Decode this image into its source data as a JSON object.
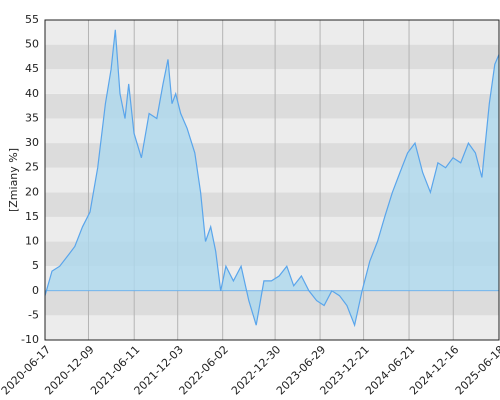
{
  "chart_data": {
    "type": "area",
    "y_label": "[Zmiany %]",
    "x": [
      "2020-06-17",
      "2020-07-15",
      "2020-08-15",
      "2020-09-15",
      "2020-10-15",
      "2020-11-15",
      "2020-12-15",
      "2021-01-15",
      "2021-02-15",
      "2021-03-10",
      "2021-03-27",
      "2021-04-15",
      "2021-05-05",
      "2021-05-20",
      "2021-06-10",
      "2021-07-10",
      "2021-08-10",
      "2021-09-10",
      "2021-10-05",
      "2021-10-25",
      "2021-11-10",
      "2021-11-25",
      "2021-12-15",
      "2022-01-10",
      "2022-02-10",
      "2022-03-05",
      "2022-03-25",
      "2022-04-15",
      "2022-05-05",
      "2022-05-25",
      "2022-06-15",
      "2022-07-15",
      "2022-08-15",
      "2022-09-15",
      "2022-10-15",
      "2022-11-15",
      "2022-12-15",
      "2023-01-15",
      "2023-02-15",
      "2023-03-15",
      "2023-04-15",
      "2023-05-15",
      "2023-06-15",
      "2023-07-15",
      "2023-08-15",
      "2023-09-15",
      "2023-10-15",
      "2023-11-15",
      "2023-12-15",
      "2024-01-15",
      "2024-02-15",
      "2024-03-15",
      "2024-04-15",
      "2024-05-15",
      "2024-06-15",
      "2024-07-15",
      "2024-08-15",
      "2024-09-15",
      "2024-10-15",
      "2024-11-15",
      "2024-12-15",
      "2025-01-15",
      "2025-02-15",
      "2025-03-15",
      "2025-04-10",
      "2025-05-10",
      "2025-06-01",
      "2025-06-18"
    ],
    "values": [
      -1,
      4,
      5,
      7,
      9,
      13,
      16,
      25,
      38,
      45,
      53,
      40,
      35,
      42,
      32,
      27,
      36,
      35,
      42,
      47,
      38,
      40,
      36,
      33,
      28,
      20,
      10,
      13,
      8,
      0,
      5,
      2,
      5,
      -2,
      -7,
      2,
      2,
      3,
      5,
      1,
      3,
      0,
      -2,
      -3,
      0,
      -1,
      -3,
      -7,
      0,
      6,
      10,
      15,
      20,
      24,
      28,
      30,
      24,
      20,
      26,
      25,
      27,
      26,
      30,
      28,
      23,
      38,
      46,
      48
    ],
    "color": "#5aa5eb",
    "fill_color": "#add8ee",
    "xlim": [
      "2020-06-17",
      "2025-06-18"
    ],
    "xticks": [
      "2020-06-17",
      "2020-12-09",
      "2021-06-11",
      "2021-12-03",
      "2022-06-02",
      "2022-12-30",
      "2023-06-29",
      "2023-12-21",
      "2024-06-21",
      "2024-12-16",
      "2025-06-18"
    ],
    "ylim": [
      -10,
      55
    ],
    "yticks": [
      -10,
      -5,
      0,
      5,
      10,
      15,
      20,
      25,
      30,
      35,
      40,
      45,
      50,
      55
    ],
    "grid": true,
    "band_colors": [
      "#ececec",
      "#dcdcdc"
    ]
  }
}
